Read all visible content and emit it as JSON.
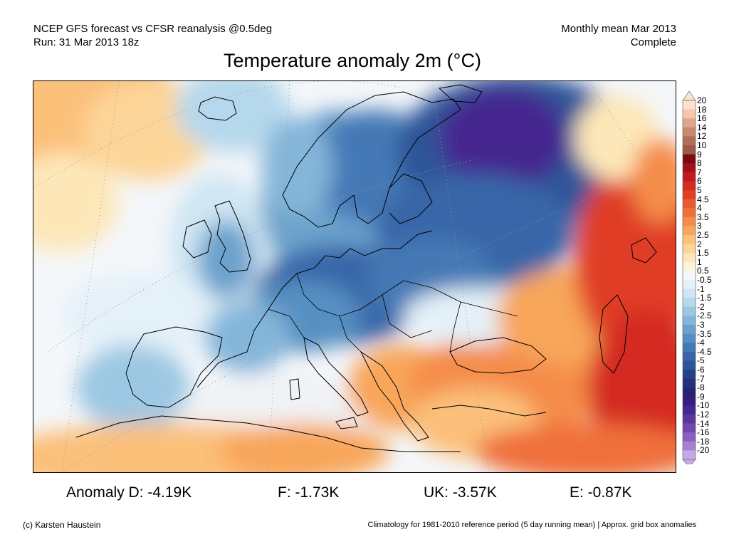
{
  "header": {
    "line1_left": "NCEP GFS forecast vs CFSR reanalysis @0.5deg",
    "line2_left": "Run: 31 Mar 2013 18z",
    "line1_right": "Monthly mean Mar 2013",
    "line2_right": "Complete"
  },
  "title": "Temperature anomaly 2m (°C)",
  "colorbar": {
    "labels": [
      "20",
      "18",
      "16",
      "14",
      "12",
      "10",
      "9",
      "8",
      "7",
      "6",
      "5",
      "4.5",
      "4",
      "3.5",
      "3",
      "2.5",
      "2",
      "1.5",
      "1",
      "0.5",
      "-0.5",
      "-1",
      "-1.5",
      "-2",
      "-2.5",
      "-3",
      "-3.5",
      "-4",
      "-4.5",
      "-5",
      "-6",
      "-7",
      "-8",
      "-9",
      "-10",
      "-12",
      "-14",
      "-16",
      "-18",
      "-20"
    ],
    "colors": [
      "#fde0cf",
      "#f4c6ae",
      "#e0a68a",
      "#c9896e",
      "#b26e58",
      "#9a5a47",
      "#7a0a12",
      "#a3101a",
      "#c21a1e",
      "#d42c22",
      "#e03e26",
      "#ea5a30",
      "#f0703a",
      "#f58c48",
      "#f8a65a",
      "#fbc07a",
      "#fdd599",
      "#fde7b8",
      "#fdf3d8",
      "#f7f7f7",
      "#e4f1f9",
      "#d0e6f3",
      "#b6d8ec",
      "#9dc8e3",
      "#84b6d9",
      "#6ca2cc",
      "#5690c2",
      "#4479b6",
      "#3866a8",
      "#2d5499",
      "#26418a",
      "#24307a",
      "#272272",
      "#331e7e",
      "#45278f",
      "#5a379f",
      "#7248b0",
      "#8b5ec2",
      "#a780d4",
      "#c5a9e6"
    ],
    "over_color": "#fde0cf",
    "under_color": "#c5a9e6"
  },
  "stats": [
    {
      "label": "Anomaly D: -4.19K"
    },
    {
      "label": "F: -1.73K"
    },
    {
      "label": "UK: -3.57K"
    },
    {
      "label": "E: -0.87K"
    }
  ],
  "footer": {
    "left": "(c) Karsten Haustein",
    "right": "Climatology for 1981-2010 reference period (5 day running mean) | Approx. grid box anomalies"
  },
  "map": {
    "region": "Europe",
    "field": "2m temperature anomaly",
    "cold_color": "#26418a",
    "warm_color": "#d42c22"
  }
}
